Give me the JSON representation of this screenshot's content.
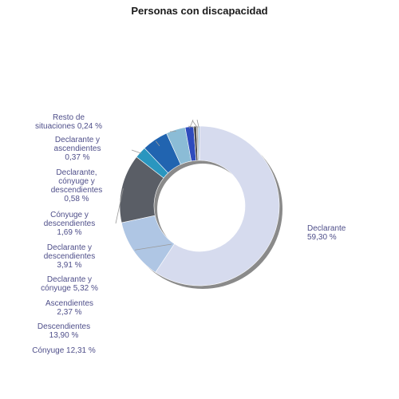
{
  "chart_data": {
    "type": "pie",
    "title": "Personas con discapacidad",
    "donut": true,
    "unit": "%",
    "slices": [
      {
        "label": "Declarante",
        "value_text": "59,30 %",
        "value": 59.3,
        "color": "#d6dbee"
      },
      {
        "label": "Cónyuge",
        "value_text": "12,31 %",
        "value": 12.31,
        "color": "#afc6e4"
      },
      {
        "label": "Descendientes",
        "value_text": "13,90 %",
        "value": 13.9,
        "color": "#5a5e66"
      },
      {
        "label": "Ascendientes",
        "value_text": "2,37 %",
        "value": 2.37,
        "color": "#2a96bf"
      },
      {
        "label": "Declarante y cónyuge",
        "value_text": "5,32 %",
        "value": 5.32,
        "color": "#2164b0"
      },
      {
        "label": "Declarante y descendientes",
        "value_text": "3,91 %",
        "value": 3.91,
        "color": "#8bbcd6"
      },
      {
        "label": "Cónyuge y descendientes",
        "value_text": "1,69 %",
        "value": 1.69,
        "color": "#2e4bbd"
      },
      {
        "label": "Declarante, cónyuge y descendientes",
        "value_text": "0,58 %",
        "value": 0.58,
        "color": "#4d4d4d"
      },
      {
        "label": "Declarante y ascendientes",
        "value_text": "0,37 %",
        "value": 0.37,
        "color": "#a8a8a8"
      },
      {
        "label": "Resto de situaciones",
        "value_text": "0,24 %",
        "value": 0.24,
        "color": "#6fa7d8"
      }
    ],
    "labels_display": [
      [
        "Declarante",
        "59,30 %"
      ],
      [
        "Cónyuge 12,31 %"
      ],
      [
        "Descendientes",
        "13,90 %"
      ],
      [
        "Ascendientes",
        "2,37 %"
      ],
      [
        "Declarante y",
        "cónyuge 5,32 %"
      ],
      [
        "Declarante y",
        "descendientes",
        "3,91 %"
      ],
      [
        "Cónyuge y",
        "descendientes",
        "1,69 %"
      ],
      [
        "Declarante,",
        "cónyuge y",
        "descendientes",
        "0,58 %"
      ],
      [
        "Declarante y",
        "ascendientes",
        "0,37 %"
      ],
      [
        "Resto de",
        "situaciones 0,24 %"
      ]
    ]
  }
}
